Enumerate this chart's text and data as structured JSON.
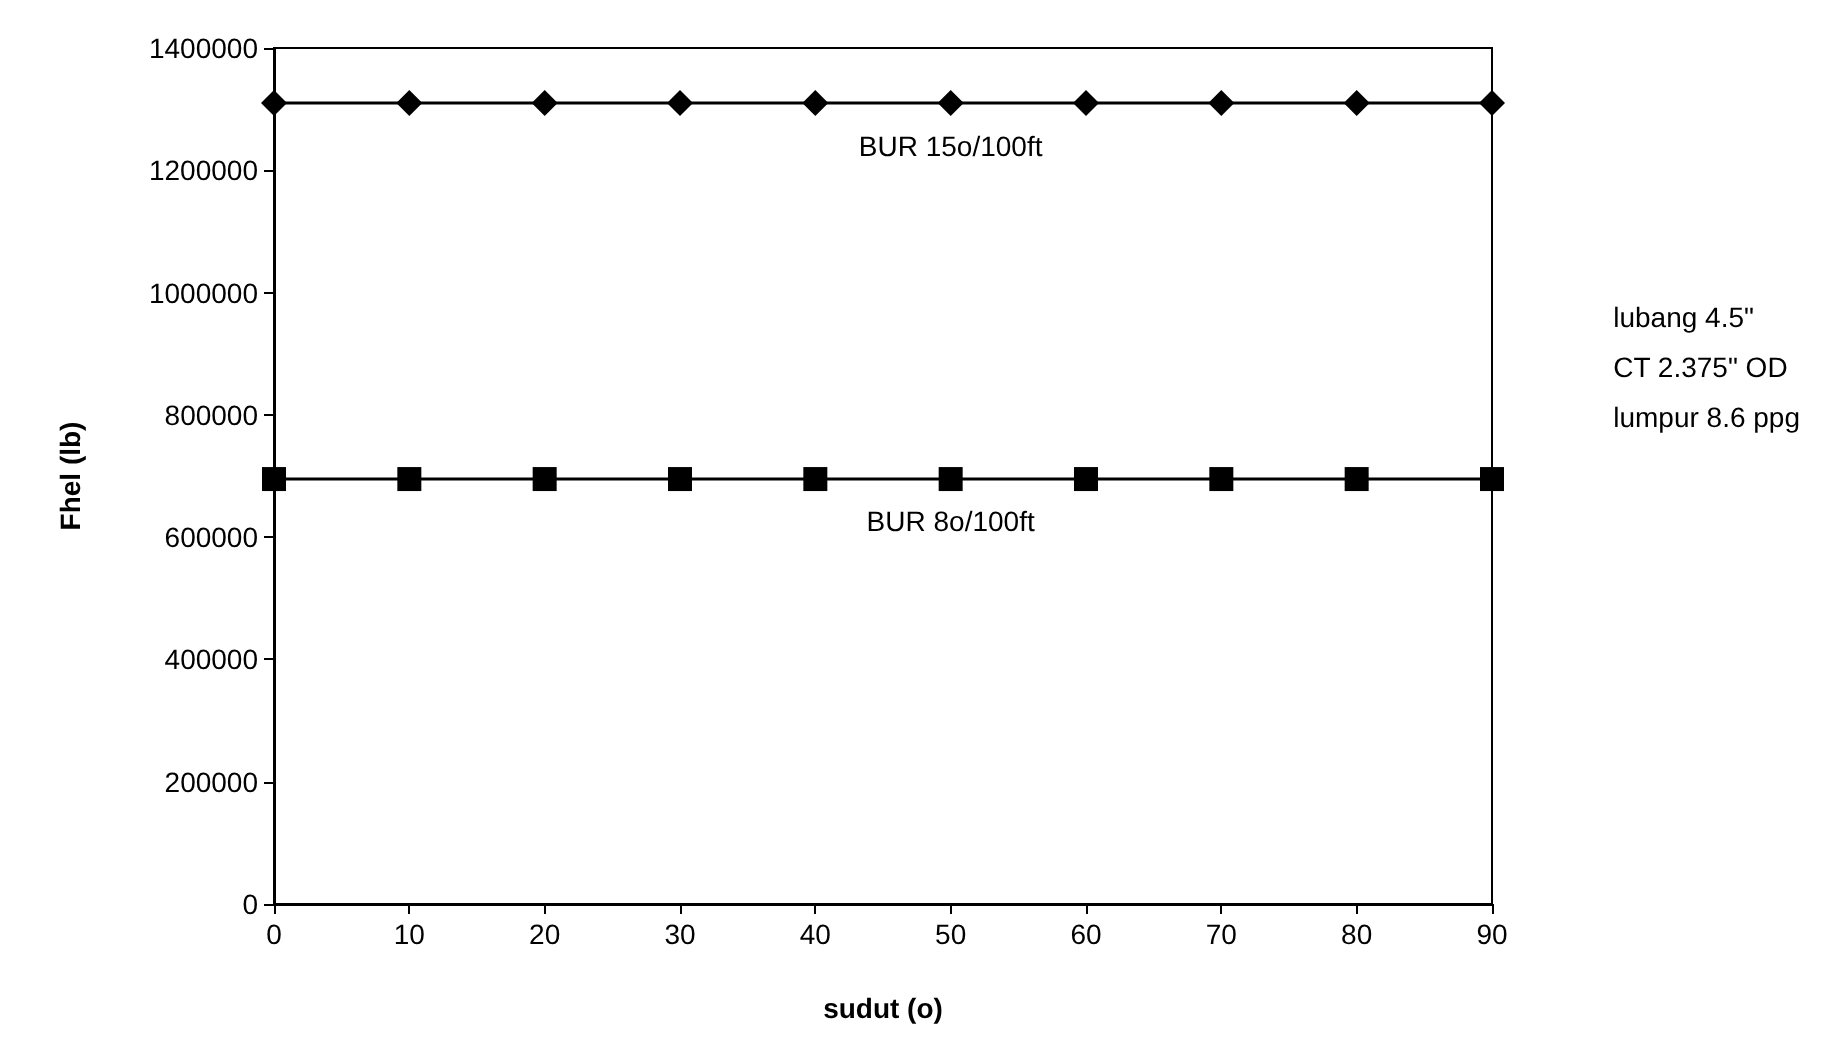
{
  "chart_data": {
    "type": "line",
    "xlabel": "sudut (o)",
    "ylabel": "Fhel (lb)",
    "x": [
      0,
      10,
      20,
      30,
      40,
      50,
      60,
      70,
      80,
      90
    ],
    "series": [
      {
        "name": "BUR 15o/100ft",
        "color": "#000000",
        "marker": "diamond",
        "values": [
          1310000,
          1310000,
          1310000,
          1310000,
          1310000,
          1310000,
          1310000,
          1310000,
          1310000,
          1310000
        ]
      },
      {
        "name": "BUR 8o/100ft",
        "color": "#000000",
        "marker": "square",
        "values": [
          695000,
          695000,
          695000,
          695000,
          695000,
          695000,
          695000,
          695000,
          695000,
          695000
        ]
      }
    ],
    "xlim": [
      0,
      90
    ],
    "xticks": [
      0,
      10,
      20,
      30,
      40,
      50,
      60,
      70,
      80,
      90
    ],
    "ylim": [
      0,
      1400000
    ],
    "yticks": [
      0,
      200000,
      400000,
      600000,
      800000,
      1000000,
      1200000,
      1400000
    ],
    "annotations": [
      "lubang 4.5\"",
      "CT 2.375\" OD",
      "lumpur 8.6 ppg"
    ],
    "grid": false,
    "legend": false,
    "line_style": "solid"
  }
}
